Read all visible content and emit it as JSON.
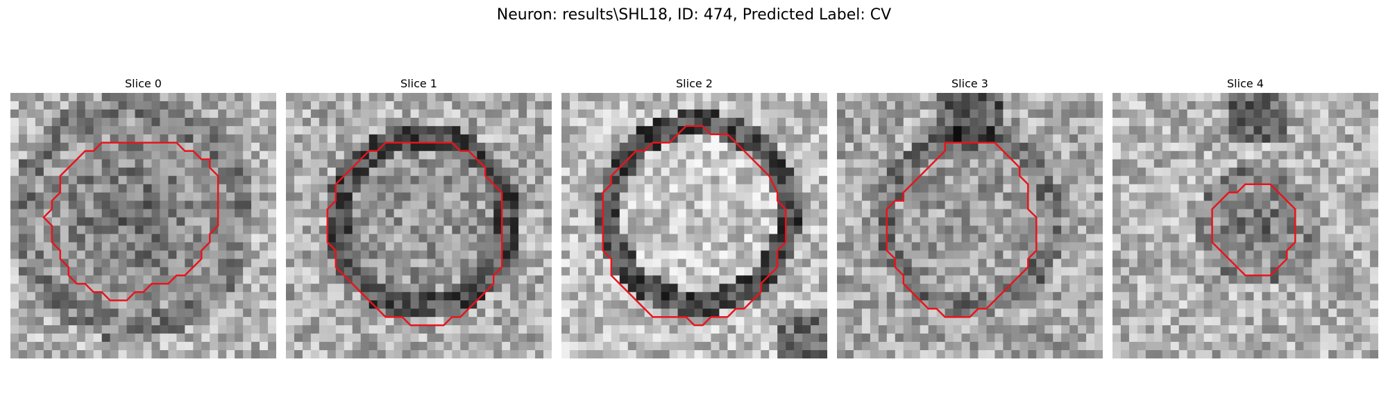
{
  "figure": {
    "title": "Neuron: results\\SHL18, ID: 474, Predicted Label: CV"
  },
  "panels": [
    {
      "title": "Slice 0",
      "outline_color": "#e8141c"
    },
    {
      "title": "Slice 1",
      "outline_color": "#e8141c"
    },
    {
      "title": "Slice 2",
      "outline_color": "#e8141c"
    },
    {
      "title": "Slice 3",
      "outline_color": "#e8141c"
    },
    {
      "title": "Slice 4",
      "outline_color": "#e8141c"
    }
  ]
}
